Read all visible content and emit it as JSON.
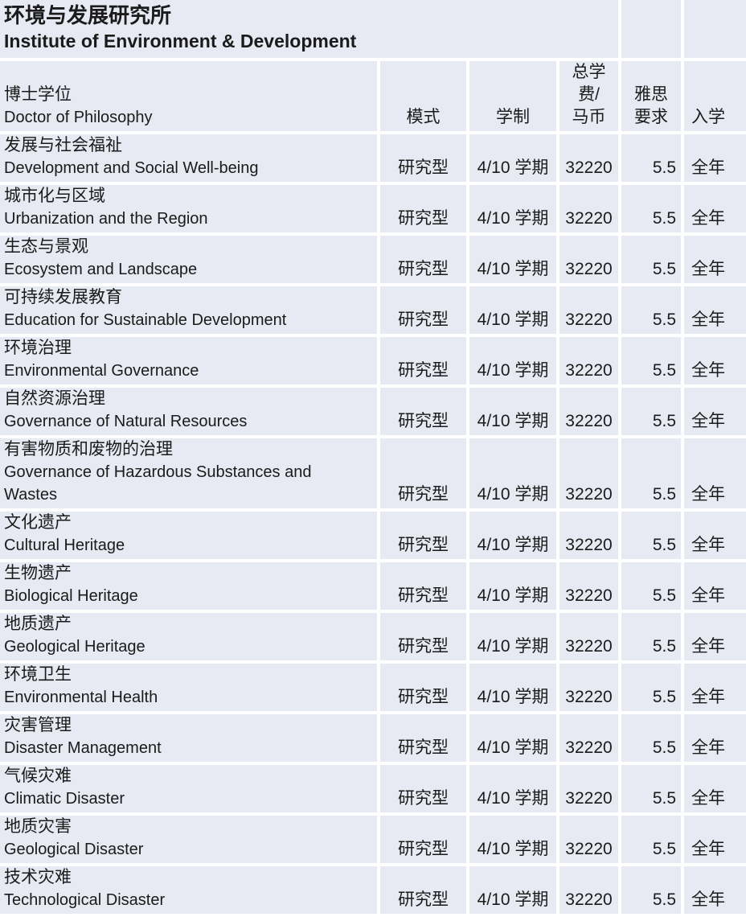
{
  "colors": {
    "cell_background": "#e7e9f3",
    "gridline": "#ffffff",
    "text": "#1b1b1b"
  },
  "title": {
    "zh": "环境与发展研究所",
    "en": "Institute of Environment & Development"
  },
  "header": {
    "program_zh": "博士学位",
    "program_en": "Doctor of Philosophy",
    "mode": "模式",
    "duration": "学制",
    "tuition": "总学\n费/\n马币",
    "ielts": "雅思\n要求",
    "intake": "入学"
  },
  "rows": [
    {
      "zh": "发展与社会福祉",
      "en": "Development and Social Well-being",
      "mode": "研究型",
      "duration": "4/10 学期",
      "tuition": "32220",
      "ielts": "5.5",
      "intake": "全年"
    },
    {
      "zh": "城市化与区域",
      "en": "Urbanization and the Region",
      "mode": "研究型",
      "duration": "4/10 学期",
      "tuition": "32220",
      "ielts": "5.5",
      "intake": "全年"
    },
    {
      "zh": "生态与景观",
      "en": "Ecosystem and Landscape",
      "mode": "研究型",
      "duration": "4/10 学期",
      "tuition": "32220",
      "ielts": "5.5",
      "intake": "全年"
    },
    {
      "zh": "可持续发展教育",
      "en": "Education for Sustainable Development",
      "mode": "研究型",
      "duration": "4/10 学期",
      "tuition": "32220",
      "ielts": "5.5",
      "intake": "全年"
    },
    {
      "zh": "环境治理",
      "en": "Environmental Governance",
      "mode": "研究型",
      "duration": "4/10 学期",
      "tuition": "32220",
      "ielts": "5.5",
      "intake": "全年"
    },
    {
      "zh": "自然资源治理",
      "en": "Governance of Natural Resources",
      "mode": "研究型",
      "duration": "4/10 学期",
      "tuition": "32220",
      "ielts": "5.5",
      "intake": "全年"
    },
    {
      "zh": "有害物质和废物的治理",
      "en": "Governance of Hazardous Substances and\nWastes",
      "mode": "研究型",
      "duration": "4/10 学期",
      "tuition": "32220",
      "ielts": "5.5",
      "intake": "全年"
    },
    {
      "zh": "文化遗产",
      "en": "Cultural Heritage",
      "mode": "研究型",
      "duration": "4/10 学期",
      "tuition": "32220",
      "ielts": "5.5",
      "intake": "全年"
    },
    {
      "zh": "生物遗产",
      "en": "Biological Heritage",
      "mode": "研究型",
      "duration": "4/10 学期",
      "tuition": "32220",
      "ielts": "5.5",
      "intake": "全年"
    },
    {
      "zh": "地质遗产",
      "en": "Geological Heritage",
      "mode": "研究型",
      "duration": "4/10 学期",
      "tuition": "32220",
      "ielts": "5.5",
      "intake": "全年"
    },
    {
      "zh": "环境卫生",
      "en": "Environmental Health",
      "mode": "研究型",
      "duration": "4/10 学期",
      "tuition": "32220",
      "ielts": "5.5",
      "intake": "全年"
    },
    {
      "zh": "灾害管理",
      "en": "Disaster Management",
      "mode": "研究型",
      "duration": "4/10 学期",
      "tuition": "32220",
      "ielts": "5.5",
      "intake": "全年"
    },
    {
      "zh": "气候灾难",
      "en": "Climatic Disaster",
      "mode": "研究型",
      "duration": "4/10 学期",
      "tuition": "32220",
      "ielts": "5.5",
      "intake": "全年"
    },
    {
      "zh": "地质灾害",
      "en": "Geological Disaster",
      "mode": "研究型",
      "duration": "4/10 学期",
      "tuition": "32220",
      "ielts": "5.5",
      "intake": "全年"
    },
    {
      "zh": "技术灾难",
      "en": "Technological Disaster",
      "mode": "研究型",
      "duration": "4/10 学期",
      "tuition": "32220",
      "ielts": "5.5",
      "intake": "全年"
    }
  ]
}
